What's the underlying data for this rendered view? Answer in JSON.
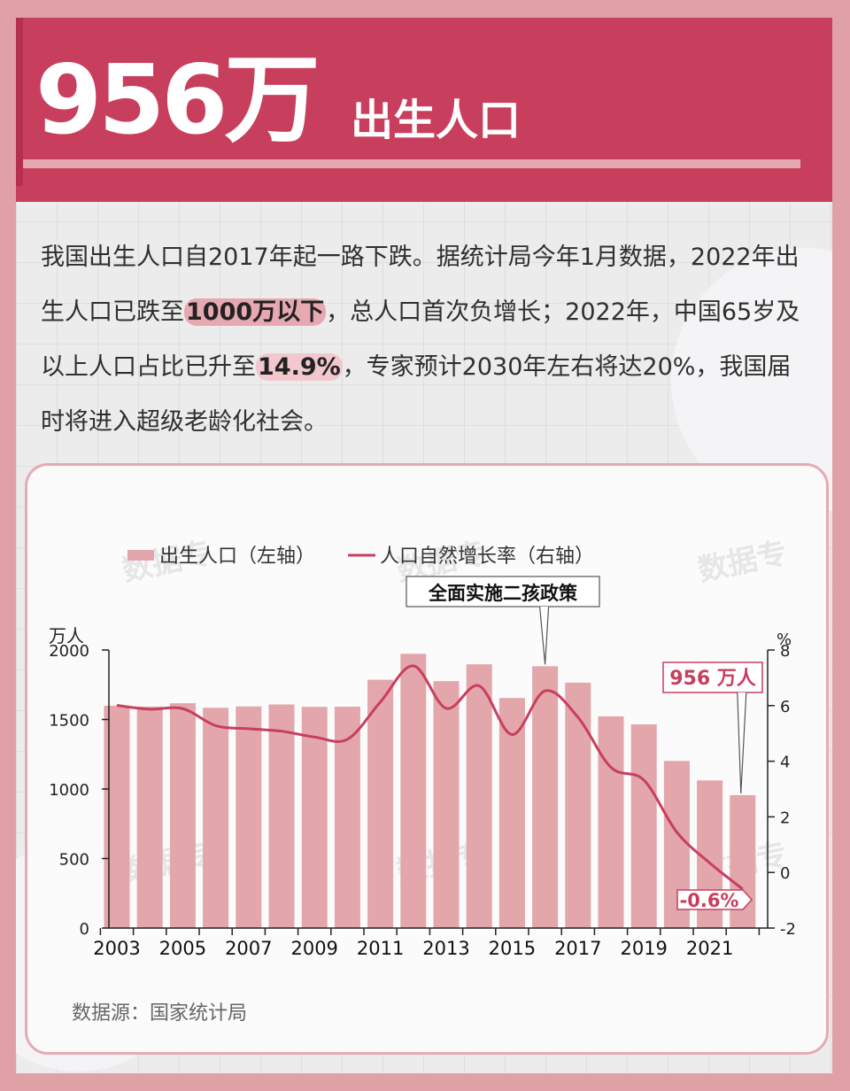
{
  "banner": {
    "headline": "956万",
    "subtitle": "出生人口"
  },
  "intro": {
    "p1": "我国出生人口自2017年起一路下跌。据统计局今年1月数据，2022年出生人口已跌至",
    "hl1": "1000万以下",
    "p2": "，总人口首次负增长；2022年，中国65岁及以上人口占比已升至",
    "hl2": "14.9%",
    "p3": "，专家预计2030年左右将达20%，我国届时将进入超级老龄化社会。"
  },
  "source": "数据源：国家统计局",
  "colors": {
    "bar": "#e2a6ab",
    "line": "#c83f5e",
    "accent": "#c83f5e"
  },
  "watermark": "数据专",
  "chart_data": {
    "type": "bar",
    "x": [
      2003,
      2004,
      2005,
      2006,
      2007,
      2008,
      2009,
      2010,
      2011,
      2012,
      2013,
      2014,
      2015,
      2016,
      2017,
      2018,
      2019,
      2020,
      2021,
      2022
    ],
    "x_tick_labels": [
      "2003",
      "2005",
      "2007",
      "2009",
      "2011",
      "2013",
      "2015",
      "2017",
      "2019",
      "2021"
    ],
    "series": [
      {
        "name": "出生人口（左轴）",
        "type": "bar",
        "axis": "left",
        "values": [
          1599,
          1593,
          1617,
          1584,
          1594,
          1608,
          1591,
          1592,
          1786,
          1973,
          1776,
          1897,
          1655,
          1883,
          1765,
          1523,
          1465,
          1202,
          1062,
          956
        ]
      },
      {
        "name": "人口自然增长率（右轴）",
        "type": "line",
        "axis": "right",
        "values": [
          6.01,
          5.87,
          5.89,
          5.28,
          5.17,
          5.08,
          4.87,
          4.79,
          6.13,
          7.43,
          5.9,
          6.71,
          4.96,
          6.53,
          5.58,
          3.78,
          3.32,
          1.45,
          0.34,
          -0.6
        ]
      }
    ],
    "y_left": {
      "label": "万人",
      "range": [
        0,
        2000
      ],
      "ticks": [
        0,
        500,
        1000,
        1500,
        2000
      ]
    },
    "y_right": {
      "label": "%",
      "range": [
        -2,
        8
      ],
      "ticks": [
        -2,
        0,
        2,
        4,
        6,
        8
      ]
    },
    "annotations": [
      {
        "text": "全面实施二孩政策",
        "x": 2016
      },
      {
        "text": "956 万人",
        "x": 2022
      },
      {
        "text": "-0.6%",
        "x": 2022
      }
    ],
    "legend": "top-left"
  }
}
